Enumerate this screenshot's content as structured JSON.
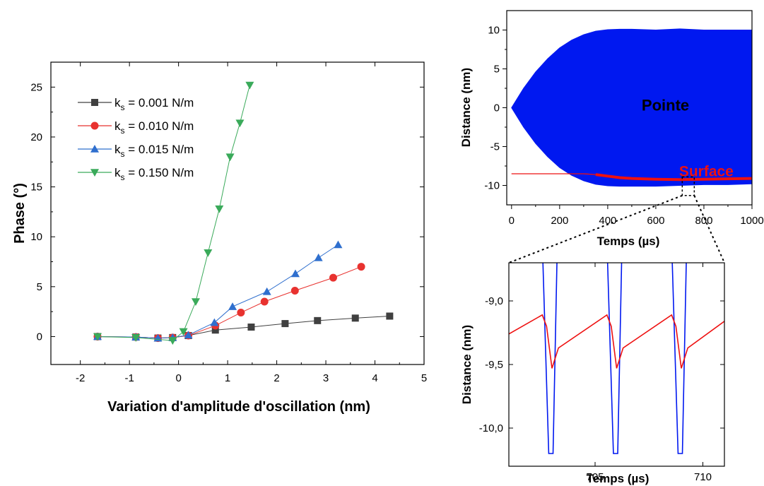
{
  "chart_data": [
    {
      "type": "line",
      "xlabel": "Variation d'amplitude d'oscillation (nm)",
      "ylabel": "Phase (°)",
      "xlim": [
        -2.6,
        5
      ],
      "ylim": [
        -2.8,
        27.5
      ],
      "xticks": [
        -2,
        -1,
        0,
        1,
        2,
        3,
        4,
        5
      ],
      "yticks": [
        0,
        5,
        10,
        15,
        20,
        25
      ],
      "legend_position": "top-left",
      "series": [
        {
          "name": "k_s = 0.001 N/m",
          "legend_main": "k",
          "legend_sub": "s",
          "legend_rest": " = 0.001 N/m",
          "color": "#404040",
          "marker": "square",
          "x": [
            -1.65,
            -0.87,
            -0.42,
            -0.12,
            0.2,
            0.75,
            1.48,
            2.17,
            2.83,
            3.6,
            4.3
          ],
          "y": [
            0,
            -0.05,
            -0.15,
            -0.1,
            0.1,
            0.65,
            0.95,
            1.3,
            1.6,
            1.85,
            2.05
          ]
        },
        {
          "name": "k_s = 0.010 N/m",
          "legend_main": "k",
          "legend_sub": "s",
          "legend_rest": " = 0.010 N/m",
          "color": "#e8322f",
          "marker": "circle",
          "x": [
            -1.65,
            -0.87,
            -0.42,
            -0.12,
            0.2,
            0.75,
            1.27,
            1.75,
            2.37,
            3.15,
            3.72
          ],
          "y": [
            0,
            -0.05,
            -0.15,
            -0.1,
            0.1,
            1.1,
            2.4,
            3.5,
            4.6,
            5.9,
            7.0
          ]
        },
        {
          "name": "k_s = 0.015 N/m",
          "legend_main": "k",
          "legend_sub": "s",
          "legend_rest": " = 0.015 N/m",
          "color": "#2f6fce",
          "marker": "triangle-up",
          "x": [
            -1.65,
            -0.87,
            -0.42,
            -0.12,
            0.2,
            0.73,
            1.1,
            1.8,
            2.38,
            2.85,
            3.25
          ],
          "y": [
            0,
            -0.05,
            -0.15,
            -0.1,
            0.15,
            1.4,
            3.0,
            4.5,
            6.3,
            7.9,
            9.2
          ]
        },
        {
          "name": "k_s = 0.150 N/m",
          "legend_main": "k",
          "legend_sub": "s",
          "legend_rest": " = 0.150 N/m",
          "color": "#3aaa5a",
          "marker": "triangle-down",
          "x": [
            -1.65,
            -0.87,
            -0.12,
            0.1,
            0.35,
            0.6,
            0.83,
            1.05,
            1.25,
            1.45
          ],
          "y": [
            0,
            -0.1,
            -0.4,
            0.5,
            3.5,
            8.4,
            12.8,
            18.0,
            21.4,
            25.2
          ]
        }
      ]
    },
    {
      "type": "line",
      "xlabel": "Temps (µs)",
      "ylabel": "Distance (nm)",
      "xlim": [
        -20,
        1000
      ],
      "ylim": [
        -12.5,
        12.5
      ],
      "xticks": [
        0,
        200,
        400,
        600,
        800,
        1000
      ],
      "yticks": [
        10,
        5,
        0,
        -5,
        -10
      ],
      "annotations": [
        "Pointe",
        "Surface"
      ],
      "series": [
        {
          "name": "Pointe",
          "color": "#0018f0",
          "envelope_x": [
            0,
            50,
            100,
            150,
            200,
            250,
            300,
            350,
            400,
            450,
            500,
            600,
            700,
            800,
            900,
            1000
          ],
          "upper": [
            0,
            2.5,
            4.6,
            6.3,
            7.7,
            8.7,
            9.4,
            9.85,
            10.05,
            10.1,
            10.1,
            10.0,
            10.15,
            10.0,
            10.0,
            10.0
          ],
          "lower": [
            0,
            -2.5,
            -4.6,
            -6.3,
            -7.7,
            -8.7,
            -9.4,
            -9.85,
            -10.05,
            -10.1,
            -10.1,
            -10.1,
            -10.0,
            -9.9,
            -9.9,
            -9.8
          ]
        },
        {
          "name": "Surface",
          "color": "#ee1010",
          "x": [
            0,
            300,
            350,
            400,
            450,
            500,
            600,
            700,
            800,
            900,
            1000
          ],
          "y": [
            -8.5,
            -8.5,
            -8.6,
            -8.8,
            -9.0,
            -9.1,
            -9.2,
            -9.25,
            -9.2,
            -9.15,
            -9.1
          ]
        }
      ],
      "zoom_box": {
        "x": [
          710,
          760
        ],
        "y": [
          -11.3,
          -8.9
        ]
      }
    },
    {
      "type": "line",
      "xlabel": "Temps (µs)",
      "ylabel": "Distance (nm)",
      "xlim": [
        701,
        711
      ],
      "ylim": [
        -10.3,
        -8.7
      ],
      "xticks": [
        705,
        710
      ],
      "xtick_labels": [
        "705",
        "710"
      ],
      "yticks": [
        -9.0,
        -9.5,
        -10.0
      ],
      "ytick_labels": [
        "-9,0",
        "-9,5",
        "-10,0"
      ],
      "series": [
        {
          "name": "Pointe",
          "color": "#0018f0",
          "x": [
            702.55,
            702.85,
            702.95,
            703.05,
            703.25,
            705.55,
            705.85,
            705.95,
            706.05,
            706.25,
            708.55,
            708.85,
            708.95,
            709.05,
            709.25
          ],
          "y": [
            -8.7,
            -10.2,
            -10.2,
            -10.2,
            -8.7,
            -8.7,
            -10.2,
            -10.2,
            -10.2,
            -8.7,
            -8.7,
            -10.2,
            -10.2,
            -10.2,
            -8.7
          ]
        },
        {
          "name": "Surface",
          "color": "#ee1010",
          "x": [
            701,
            702.55,
            702.75,
            703.0,
            703.3,
            705.55,
            705.75,
            706.0,
            706.3,
            708.55,
            708.75,
            709.0,
            709.3,
            711
          ],
          "y": [
            -9.26,
            -9.11,
            -9.2,
            -9.53,
            -9.37,
            -9.11,
            -9.2,
            -9.53,
            -9.37,
            -9.11,
            -9.2,
            -9.53,
            -9.37,
            -9.16
          ]
        }
      ]
    }
  ]
}
